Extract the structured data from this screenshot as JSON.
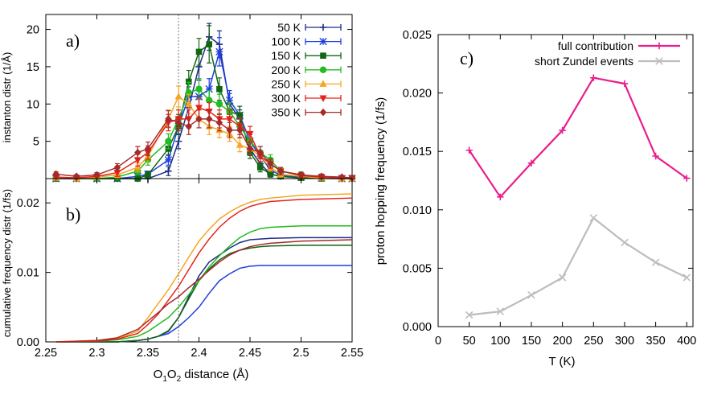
{
  "chart_data": [
    {
      "id": "a",
      "type": "line",
      "panel_label": "a)",
      "ylabel": "instanton distr (1/Å)",
      "xlim": [
        2.25,
        2.55
      ],
      "ylim": [
        0,
        22
      ],
      "yticks": [
        5,
        10,
        15,
        20
      ],
      "x": [
        2.26,
        2.28,
        2.3,
        2.32,
        2.34,
        2.35,
        2.37,
        2.38,
        2.39,
        2.4,
        2.41,
        2.42,
        2.43,
        2.44,
        2.45,
        2.46,
        2.47,
        2.48,
        2.5,
        2.52,
        2.54,
        2.55
      ],
      "series": [
        {
          "name": "50 K",
          "color": "#1f2d86",
          "marker": "plus",
          "values": [
            0,
            0,
            0,
            0,
            0,
            0,
            1.0,
            5.0,
            9.5,
            15.0,
            19.0,
            18.0,
            10.0,
            8.0,
            4.0,
            2.0,
            0.6,
            0.3,
            0.1,
            0.1,
            0,
            0
          ],
          "errors": [
            0.2,
            0.2,
            0.2,
            0.2,
            0.2,
            0.2,
            0.6,
            1.0,
            1.4,
            1.8,
            1.8,
            1.8,
            1.4,
            1.2,
            0.9,
            0.7,
            0.4,
            0.3,
            0.2,
            0.2,
            0.2,
            0.2
          ]
        },
        {
          "name": "100 K",
          "color": "#1f3fe0",
          "marker": "star",
          "values": [
            0,
            0,
            0,
            0,
            0.3,
            0.6,
            2.5,
            7.0,
            11.0,
            11.0,
            12.0,
            17.0,
            10.5,
            8.5,
            5.0,
            3.0,
            1.2,
            0.4,
            0.2,
            0.1,
            0,
            0
          ],
          "errors": [
            0.2,
            0.2,
            0.2,
            0.2,
            0.3,
            0.4,
            0.7,
            1.1,
            1.3,
            1.3,
            1.4,
            1.9,
            1.3,
            1.2,
            0.9,
            0.7,
            0.5,
            0.3,
            0.2,
            0.2,
            0.2,
            0.2
          ]
        },
        {
          "name": "150 K",
          "color": "#116611",
          "marker": "square",
          "values": [
            0,
            0,
            0,
            0,
            0,
            0.5,
            4.0,
            7.0,
            13.0,
            17.0,
            18.0,
            12.0,
            9.0,
            8.5,
            3.5,
            1.5,
            0.6,
            0.3,
            0.1,
            0,
            0,
            0
          ],
          "errors": [
            0.2,
            0.2,
            0.2,
            0.2,
            0.2,
            0.4,
            0.9,
            1.1,
            1.5,
            1.8,
            2.5,
            1.5,
            1.2,
            1.2,
            0.8,
            0.6,
            0.4,
            0.3,
            0.2,
            0.2,
            0.2,
            0.2
          ]
        },
        {
          "name": "200 K",
          "color": "#22bb22",
          "marker": "circle",
          "values": [
            0.1,
            0,
            0,
            0.2,
            1.0,
            2.5,
            5.0,
            8.0,
            11.5,
            12.0,
            10.5,
            10.0,
            9.0,
            7.0,
            5.0,
            3.5,
            2.5,
            1.0,
            0.5,
            0.2,
            0.1,
            0.1
          ],
          "errors": [
            0.2,
            0.2,
            0.2,
            0.3,
            0.5,
            0.7,
            1.0,
            1.2,
            1.4,
            1.4,
            1.3,
            1.3,
            1.2,
            1.1,
            0.9,
            0.8,
            0.7,
            0.5,
            0.4,
            0.3,
            0.2,
            0.2
          ]
        },
        {
          "name": "250 K",
          "color": "#f5a623",
          "marker": "triangle-up",
          "values": [
            0.1,
            0,
            0.2,
            0.5,
            1.5,
            3.0,
            8.0,
            11.0,
            10.0,
            8.0,
            7.0,
            6.5,
            6.0,
            4.5,
            4.0,
            3.0,
            1.5,
            0.6,
            0.3,
            0.1,
            0,
            0
          ],
          "errors": [
            0.2,
            0.2,
            0.3,
            0.4,
            0.6,
            0.8,
            1.2,
            1.4,
            1.3,
            1.2,
            1.1,
            1.0,
            1.0,
            0.9,
            0.8,
            0.7,
            0.5,
            0.4,
            0.3,
            0.2,
            0.2,
            0.2
          ]
        },
        {
          "name": "300 K",
          "color": "#e5231b",
          "marker": "triangle-down",
          "values": [
            0.2,
            0.1,
            0.3,
            0.8,
            2.5,
            3.5,
            7.5,
            8.0,
            8.0,
            9.5,
            9.0,
            8.0,
            8.0,
            7.0,
            6.0,
            3.0,
            2.0,
            1.0,
            0.4,
            0.2,
            0.1,
            0.1
          ],
          "errors": [
            0.2,
            0.2,
            0.3,
            0.5,
            0.8,
            0.9,
            1.1,
            1.2,
            1.2,
            1.3,
            1.2,
            1.2,
            1.2,
            1.1,
            1.0,
            0.7,
            0.6,
            0.5,
            0.3,
            0.2,
            0.2,
            0.2
          ]
        },
        {
          "name": "350 K",
          "color": "#a52a2a",
          "marker": "diamond",
          "values": [
            0.6,
            0.3,
            0.5,
            1.5,
            3.5,
            4.0,
            8.0,
            7.5,
            7.0,
            8.0,
            8.0,
            7.5,
            6.5,
            6.5,
            4.0,
            3.5,
            2.0,
            1.0,
            0.5,
            0.3,
            0.2,
            0.1
          ],
          "errors": [
            0.3,
            0.2,
            0.3,
            0.5,
            0.8,
            0.9,
            1.1,
            1.1,
            1.1,
            1.2,
            1.2,
            1.1,
            1.0,
            1.0,
            0.8,
            0.8,
            0.6,
            0.5,
            0.3,
            0.3,
            0.2,
            0.2
          ]
        }
      ],
      "legend": "top-right",
      "reference_line_x": 2.38
    },
    {
      "id": "b",
      "type": "line",
      "panel_label": "b)",
      "ylabel": "cumulative frequency distr (1/fs)",
      "xlabel": "O1O2 distance (Å)",
      "xlim": [
        2.25,
        2.55
      ],
      "ylim": [
        0,
        0.0235
      ],
      "xticks": [
        2.25,
        2.3,
        2.35,
        2.4,
        2.45,
        2.5,
        2.55
      ],
      "xtick_labels": [
        "2.25",
        "2.3",
        "2.35",
        "2.4",
        "2.45",
        "2.5",
        "2.55"
      ],
      "yticks": [
        0.0,
        0.01,
        0.02
      ],
      "ytick_labels": [
        "0.00",
        "0.01",
        "0.02"
      ],
      "x": [
        2.26,
        2.3,
        2.32,
        2.34,
        2.35,
        2.36,
        2.37,
        2.38,
        2.39,
        2.4,
        2.41,
        2.42,
        2.43,
        2.44,
        2.45,
        2.46,
        2.47,
        2.5,
        2.55
      ],
      "series": [
        {
          "name": "50 K",
          "color": "#1f2d86",
          "values": [
            0,
            0,
            0,
            0.0002,
            0.0004,
            0.0008,
            0.0015,
            0.0035,
            0.0065,
            0.0095,
            0.0115,
            0.0125,
            0.0135,
            0.0143,
            0.0147,
            0.0148,
            0.0149,
            0.015,
            0.015
          ]
        },
        {
          "name": "100 K",
          "color": "#1f3fe0",
          "values": [
            0,
            0,
            0,
            0.0002,
            0.0004,
            0.0008,
            0.0012,
            0.0022,
            0.0035,
            0.005,
            0.007,
            0.0088,
            0.0098,
            0.0106,
            0.0109,
            0.011,
            0.011,
            0.011,
            0.011
          ]
        },
        {
          "name": "150 K",
          "color": "#116611",
          "values": [
            0,
            0,
            0,
            0.0002,
            0.0004,
            0.0008,
            0.0016,
            0.0035,
            0.0062,
            0.0088,
            0.0105,
            0.0118,
            0.0127,
            0.0132,
            0.0135,
            0.0137,
            0.0138,
            0.0139,
            0.0139
          ]
        },
        {
          "name": "200 K",
          "color": "#22bb22",
          "values": [
            0,
            0.0001,
            0.0003,
            0.0008,
            0.0015,
            0.0025,
            0.0035,
            0.005,
            0.0068,
            0.0088,
            0.0108,
            0.0124,
            0.0138,
            0.015,
            0.0158,
            0.0163,
            0.0165,
            0.0167,
            0.0167
          ]
        },
        {
          "name": "250 K",
          "color": "#f5a623",
          "values": [
            0,
            0.0002,
            0.0005,
            0.0015,
            0.0035,
            0.0055,
            0.0075,
            0.0098,
            0.0122,
            0.0145,
            0.0162,
            0.0177,
            0.0187,
            0.0195,
            0.0201,
            0.0205,
            0.0207,
            0.0211,
            0.0213
          ]
        },
        {
          "name": "300 K",
          "color": "#e5231b",
          "values": [
            0,
            0.0001,
            0.0004,
            0.0012,
            0.0025,
            0.004,
            0.006,
            0.008,
            0.0104,
            0.0128,
            0.0148,
            0.0165,
            0.0178,
            0.0188,
            0.0195,
            0.0199,
            0.0202,
            0.0205,
            0.0207
          ]
        },
        {
          "name": "350 K",
          "color": "#a52a2a",
          "values": [
            0,
            0.0002,
            0.0006,
            0.0018,
            0.003,
            0.0042,
            0.0055,
            0.0065,
            0.0078,
            0.009,
            0.0103,
            0.0115,
            0.0125,
            0.0132,
            0.0137,
            0.014,
            0.0142,
            0.0145,
            0.0147
          ]
        }
      ],
      "reference_line_x": 2.38
    },
    {
      "id": "c",
      "type": "line",
      "panel_label": "c)",
      "ylabel": "proton hopping frequency (1/fs)",
      "xlabel": "T (K)",
      "xlim": [
        0,
        410
      ],
      "ylim": [
        0,
        0.025
      ],
      "xticks": [
        0,
        50,
        100,
        150,
        200,
        250,
        300,
        350,
        400
      ],
      "xtick_labels": [
        "0",
        "50",
        "100",
        "150",
        "200",
        "250",
        "300",
        "350",
        "400"
      ],
      "yticks": [
        0,
        0.005,
        0.01,
        0.015,
        0.02,
        0.025
      ],
      "ytick_labels": [
        "0.000",
        "0.005",
        "0.010",
        "0.015",
        "0.020",
        "0.025"
      ],
      "x": [
        50,
        100,
        150,
        200,
        250,
        300,
        350,
        400
      ],
      "series": [
        {
          "name": "full contribution",
          "color": "#e91e8c",
          "marker": "plus",
          "values": [
            0.0151,
            0.0111,
            0.014,
            0.0168,
            0.0213,
            0.0208,
            0.0146,
            0.0127
          ]
        },
        {
          "name": "short Zundel events",
          "color": "#bdbdbd",
          "marker": "x",
          "values": [
            0.001,
            0.0013,
            0.0027,
            0.0042,
            0.0093,
            0.0072,
            0.0055,
            0.0042
          ]
        }
      ],
      "legend": "top-right"
    }
  ]
}
